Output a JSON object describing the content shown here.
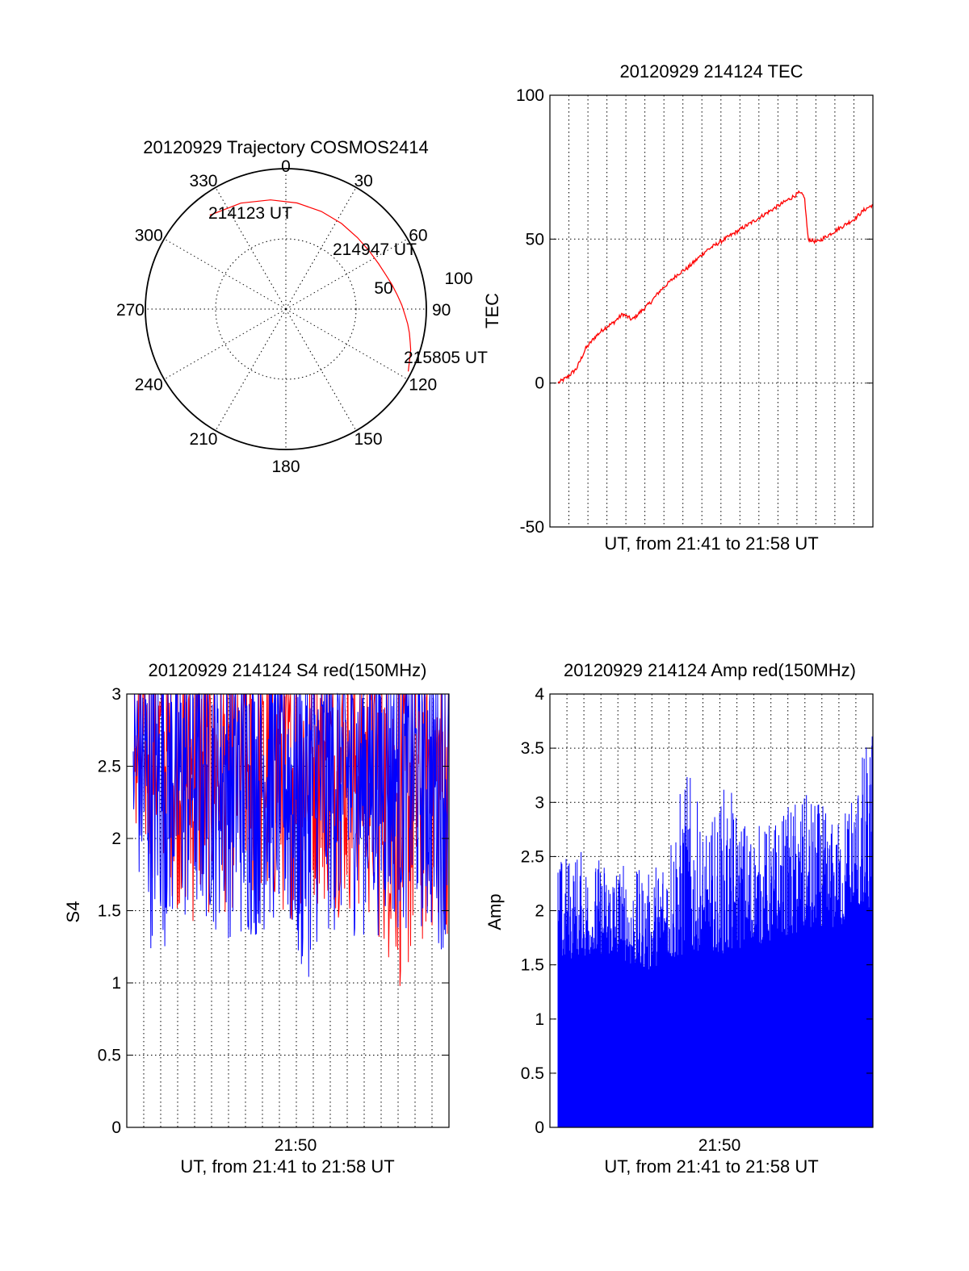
{
  "chart_data": [
    {
      "id": "trajectory",
      "type": "scatter",
      "title": "20120929 Trajectory COSMOS2414",
      "azimuth_labels": [
        "0",
        "30",
        "60",
        "90",
        "120",
        "150",
        "180",
        "210",
        "240",
        "270",
        "300",
        "330"
      ],
      "elevation_ring_labels": [
        "50",
        "100"
      ],
      "track": {
        "color": "#ff0000",
        "azimuth_deg": [
          321,
          337,
          352,
          6,
          20,
          33,
          45,
          55,
          64,
          71,
          77,
          83,
          88,
          93,
          97,
          101,
          105,
          108,
          112,
          115,
          117
        ],
        "radius_from_center": [
          86,
          82,
          78.5,
          76,
          74,
          72.7,
          72,
          72.3,
          73.5,
          75.2,
          77.5,
          80,
          82.6,
          85,
          87.4,
          89.6,
          91.6,
          93.4,
          95.1,
          96.6,
          97.8
        ]
      },
      "time_labels": [
        "214123 UT",
        "214947 UT",
        "215805 UT"
      ]
    },
    {
      "id": "tec",
      "type": "line",
      "title": "20120929 214124 TEC",
      "xlabel": "UT, from 21:41 to 21:58 UT",
      "ylabel": "TEC",
      "ylim": [
        -50,
        100
      ],
      "yticks": [
        "-50",
        "0",
        "50",
        "100"
      ],
      "x_range_minutes": [
        0,
        17
      ],
      "line_color": "#ff0000",
      "series": [
        {
          "x": [
            0,
            0.5,
            1,
            1.5,
            2,
            2.5,
            3,
            3.5,
            4,
            4.5,
            5,
            5.5,
            6,
            6.5,
            7,
            7.5,
            8,
            8.5,
            9,
            9.5,
            10,
            10.5,
            11,
            11.5,
            12,
            12.5,
            13,
            13.3,
            13.5,
            14,
            14.5,
            15,
            15.5,
            16,
            16.5,
            17
          ],
          "values": [
            0,
            2,
            5,
            12,
            16,
            19,
            21,
            24,
            22,
            25,
            28,
            32,
            35,
            38,
            40,
            43,
            46,
            48,
            50,
            52,
            54,
            56,
            58,
            60,
            62,
            64,
            66,
            65,
            50,
            49,
            51,
            53,
            55,
            57,
            60,
            62
          ]
        }
      ]
    },
    {
      "id": "s4",
      "type": "line",
      "title": "20120929 214124 S4 red(150MHz)",
      "xlabel": "UT, from 21:41 to 21:58 UT",
      "ylabel": "S4",
      "ylim": [
        0,
        3
      ],
      "yticks": [
        "0",
        "0.5",
        "1",
        "1.5",
        "2",
        "2.5",
        "3"
      ],
      "xtick_label": "21:50",
      "x_range_minutes": [
        0,
        17
      ],
      "series": [
        {
          "color": "#ff0000",
          "x": [
            0,
            1,
            2,
            3,
            4,
            5,
            6,
            7,
            8,
            9,
            10,
            11,
            12,
            13,
            14,
            14.5,
            15,
            15.5,
            16,
            17
          ],
          "lower_envelope": [
            1.8,
            1.7,
            1.6,
            1.3,
            1.4,
            1.45,
            1.5,
            1.35,
            1.4,
            1.45,
            1.5,
            1.45,
            1.4,
            1.3,
            1.0,
            0.85,
            0.95,
            1.1,
            1.25,
            1.3
          ]
        },
        {
          "color": "#0000ff",
          "x": [
            0,
            1,
            2,
            3,
            4,
            5,
            6,
            7,
            8,
            9,
            10,
            11,
            12,
            13,
            14,
            14.5,
            15,
            15.5,
            16,
            17
          ],
          "lower_envelope": [
            1.7,
            1.2,
            1.25,
            1.3,
            1.35,
            1.3,
            1.2,
            1.3,
            1.35,
            0.85,
            1.25,
            1.3,
            1.3,
            1.3,
            1.35,
            1.3,
            1.35,
            1.3,
            1.25,
            1.2
          ]
        }
      ]
    },
    {
      "id": "amp",
      "type": "bar",
      "title": "20120929 214124 Amp red(150MHz)",
      "xlabel": "UT, from 21:41 to 21:58 UT",
      "ylabel": "Amp",
      "ylim": [
        0,
        4
      ],
      "yticks": [
        "0",
        "0.5",
        "1",
        "1.5",
        "2",
        "2.5",
        "3",
        "3.5",
        "4"
      ],
      "xtick_label": "21:50",
      "x_range_minutes": [
        0,
        17
      ],
      "color": "#0000ff",
      "series": [
        {
          "x": [
            0,
            1,
            2,
            3,
            4,
            5,
            6,
            7,
            8,
            9,
            10,
            11,
            12,
            13,
            14,
            15,
            16,
            17
          ],
          "baseline": [
            1.55,
            1.55,
            1.6,
            1.6,
            1.5,
            1.45,
            1.55,
            1.6,
            1.65,
            1.6,
            1.65,
            1.7,
            1.75,
            1.8,
            1.8,
            1.85,
            1.9,
            2.0
          ],
          "peaks": [
            2.5,
            2.6,
            2.5,
            2.55,
            2.4,
            2.35,
            2.85,
            3.35,
            2.7,
            3.2,
            2.9,
            2.8,
            2.9,
            3.1,
            3.05,
            2.8,
            3.3,
            3.75
          ]
        }
      ]
    }
  ]
}
